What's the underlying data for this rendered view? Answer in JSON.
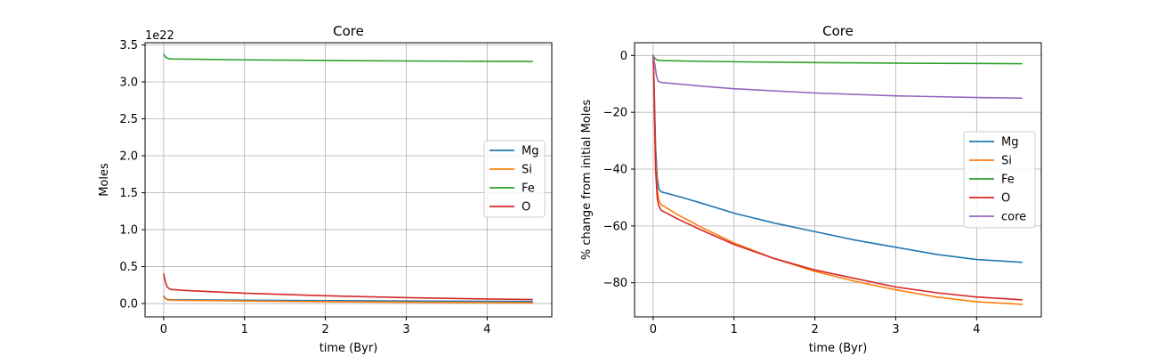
{
  "chart_data": [
    {
      "type": "line",
      "title": "Core",
      "xlabel": "time (Byr)",
      "ylabel": "Moles",
      "y_offset_text": "1e22",
      "xlim": [
        -0.23,
        4.8
      ],
      "ylim": [
        -0.18,
        3.53
      ],
      "xticks": [
        0,
        1,
        2,
        3,
        4
      ],
      "xtick_labels": [
        "0",
        "1",
        "2",
        "3",
        "4"
      ],
      "yticks": [
        0,
        0.5,
        1.0,
        1.5,
        2.0,
        2.5,
        3.0,
        3.5
      ],
      "ytick_labels": [
        "0.0",
        "0.5",
        "1.0",
        "1.5",
        "2.0",
        "2.5",
        "3.0",
        "3.5"
      ],
      "grid": true,
      "legend_position": "center-right",
      "series": [
        {
          "name": "Mg",
          "color": "#1f77b4",
          "x": [
            0,
            0.02,
            0.05,
            0.1,
            0.5,
            1,
            2,
            3,
            4,
            4.56
          ],
          "y": [
            0.1,
            0.07,
            0.055,
            0.052,
            0.048,
            0.045,
            0.04,
            0.035,
            0.03,
            0.028
          ]
        },
        {
          "name": "Si",
          "color": "#ff7f0e",
          "x": [
            0,
            0.02,
            0.05,
            0.1,
            0.5,
            1,
            2,
            3,
            4,
            4.56
          ],
          "y": [
            0.09,
            0.065,
            0.05,
            0.045,
            0.04,
            0.035,
            0.025,
            0.018,
            0.012,
            0.01
          ]
        },
        {
          "name": "Fe",
          "color": "#2ca02c",
          "x": [
            0,
            0.03,
            0.06,
            0.1,
            0.5,
            1,
            2,
            3,
            4,
            4.56
          ],
          "y": [
            3.37,
            3.33,
            3.315,
            3.31,
            3.305,
            3.298,
            3.29,
            3.283,
            3.278,
            3.276
          ]
        },
        {
          "name": "O",
          "color": "#d62728",
          "x": [
            0,
            0.02,
            0.04,
            0.07,
            0.1,
            0.3,
            0.6,
            1,
            2,
            3,
            4,
            4.56
          ],
          "y": [
            0.4,
            0.3,
            0.23,
            0.2,
            0.19,
            0.175,
            0.16,
            0.14,
            0.105,
            0.08,
            0.062,
            0.055
          ]
        }
      ]
    },
    {
      "type": "line",
      "title": "Core",
      "xlabel": "time (Byr)",
      "ylabel": "% change from initial Moles",
      "xlim": [
        -0.23,
        4.8
      ],
      "ylim": [
        -92,
        4.5
      ],
      "xticks": [
        0,
        1,
        2,
        3,
        4
      ],
      "xtick_labels": [
        "0",
        "1",
        "2",
        "3",
        "4"
      ],
      "yticks": [
        0,
        -20,
        -40,
        -60,
        -80
      ],
      "ytick_labels": [
        "0",
        "−20",
        "−40",
        "−60",
        "−80"
      ],
      "grid": true,
      "legend_position": "center-right",
      "series": [
        {
          "name": "Mg",
          "color": "#1f77b4",
          "x": [
            0,
            0.01,
            0.02,
            0.03,
            0.05,
            0.07,
            0.1,
            0.3,
            0.6,
            1,
            1.5,
            2,
            2.5,
            3,
            3.5,
            4,
            4.56
          ],
          "y": [
            0,
            -8,
            -20,
            -32,
            -43,
            -47,
            -48,
            -49.5,
            -52,
            -55.5,
            -59,
            -62,
            -65,
            -67.5,
            -70,
            -71.8,
            -72.8
          ]
        },
        {
          "name": "Si",
          "color": "#ff7f0e",
          "x": [
            0,
            0.01,
            0.02,
            0.03,
            0.05,
            0.07,
            0.1,
            0.3,
            0.6,
            1,
            1.5,
            2,
            2.5,
            3,
            3.5,
            4,
            4.56
          ],
          "y": [
            0,
            -10,
            -24,
            -36,
            -47,
            -51,
            -52.5,
            -56,
            -60.5,
            -66,
            -71.5,
            -76,
            -79.5,
            -82.5,
            -85,
            -86.7,
            -87.6
          ]
        },
        {
          "name": "Fe",
          "color": "#2ca02c",
          "x": [
            0,
            0.02,
            0.05,
            0.1,
            0.5,
            1,
            2,
            3,
            4,
            4.56
          ],
          "y": [
            0,
            -1.0,
            -1.6,
            -1.8,
            -2.0,
            -2.2,
            -2.5,
            -2.7,
            -2.8,
            -2.9
          ]
        },
        {
          "name": "O",
          "color": "#d62728",
          "x": [
            0,
            0.01,
            0.02,
            0.03,
            0.05,
            0.07,
            0.1,
            0.3,
            0.6,
            1,
            1.5,
            2,
            2.5,
            3,
            3.5,
            4,
            4.56
          ],
          "y": [
            0,
            -12,
            -27,
            -40,
            -50,
            -53,
            -54.5,
            -57.5,
            -61.5,
            -66.5,
            -71.5,
            -75.5,
            -78.5,
            -81.5,
            -83.5,
            -85,
            -86
          ]
        },
        {
          "name": "core",
          "color": "#9467bd",
          "x": [
            0,
            0.02,
            0.04,
            0.06,
            0.1,
            0.3,
            0.6,
            1,
            2,
            3,
            4,
            4.56
          ],
          "y": [
            0,
            -3,
            -7,
            -9,
            -9.5,
            -10,
            -10.8,
            -11.7,
            -13.2,
            -14.2,
            -14.8,
            -15
          ]
        }
      ]
    }
  ]
}
